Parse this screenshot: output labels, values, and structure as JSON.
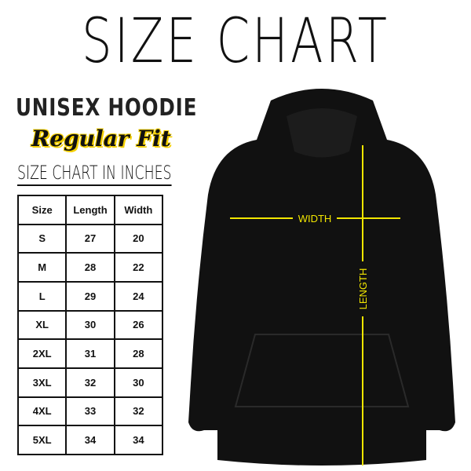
{
  "title": "SIZE CHART",
  "subtitle": "UNISEX HOODIE",
  "fit": "Regular Fit",
  "units_heading": "SIZE CHART IN INCHES",
  "table": {
    "headers": [
      "Size",
      "Length",
      "Width"
    ],
    "rows": [
      [
        "S",
        "27",
        "20"
      ],
      [
        "M",
        "28",
        "22"
      ],
      [
        "L",
        "29",
        "24"
      ],
      [
        "XL",
        "30",
        "26"
      ],
      [
        "2XL",
        "31",
        "28"
      ],
      [
        "3XL",
        "32",
        "30"
      ],
      [
        "4XL",
        "33",
        "32"
      ],
      [
        "5XL",
        "34",
        "34"
      ]
    ]
  },
  "diagram": {
    "width_label": "WIDTH",
    "length_label": "LENGTH",
    "guide_color": "#f2e600",
    "garment_color": "#111111"
  }
}
